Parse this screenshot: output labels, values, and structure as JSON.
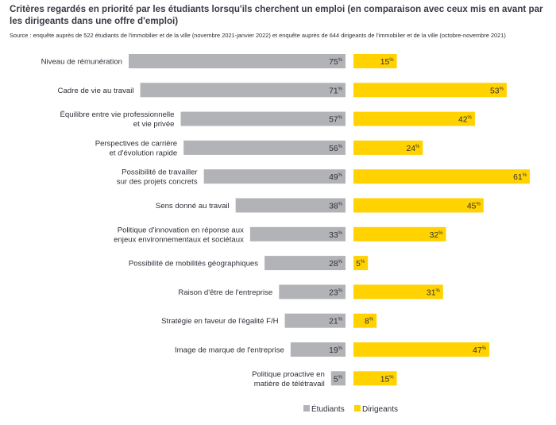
{
  "title": "Critères regardés en priorité par les étudiants lorsqu'ils cherchent un emploi (en comparaison avec ceux mis en avant par les dirigeants dans une offre d'emploi)",
  "source": "Source : enquête auprès de 522 étudiants de l'immobilier et de la ville (novembre 2021-janvier 2022) et enquête auprès de 644 dirigeants de l'immobilier et de la ville (octobre-novembre 2021)",
  "colors": {
    "etudiants": "#b2b3b6",
    "dirigeants": "#ffd200"
  },
  "value_suffix": "%",
  "chart_data": {
    "type": "bar",
    "orientation": "horizontal-butterfly",
    "title": "Critères regardés en priorité par les étudiants lorsqu'ils cherchent un emploi (en comparaison avec ceux mis en avant par les dirigeants dans une offre d'emploi)",
    "categories": [
      [
        "Niveau de rémunération"
      ],
      [
        "Cadre de vie au travail"
      ],
      [
        "Équilibre entre vie professionnelle",
        "et vie privée"
      ],
      [
        "Perspectives de carrière",
        "et d'évolution rapide"
      ],
      [
        "Possibilité de travailler",
        "sur des projets concrets"
      ],
      [
        "Sens donné au travail"
      ],
      [
        "Politique d'innovation en réponse aux",
        "enjeux environnementaux et sociétaux"
      ],
      [
        "Possibilité de mobilités géographiques"
      ],
      [
        "Raison d'être de l'entreprise"
      ],
      [
        "Stratégie en faveur de l'égalité F/H"
      ],
      [
        "Image de marque de l'entreprise"
      ],
      [
        "Politique proactive en",
        "matière de télétravail"
      ]
    ],
    "series": [
      {
        "name": "Étudiants",
        "values": [
          75,
          71,
          57,
          56,
          49,
          38,
          33,
          28,
          23,
          21,
          19,
          5
        ]
      },
      {
        "name": "Dirigeants",
        "values": [
          15,
          53,
          42,
          24,
          61,
          45,
          32,
          5,
          31,
          8,
          47,
          15
        ]
      }
    ],
    "unit": "%",
    "xlim": [
      0,
      100
    ],
    "legend": "bottom-right",
    "grid": false
  }
}
